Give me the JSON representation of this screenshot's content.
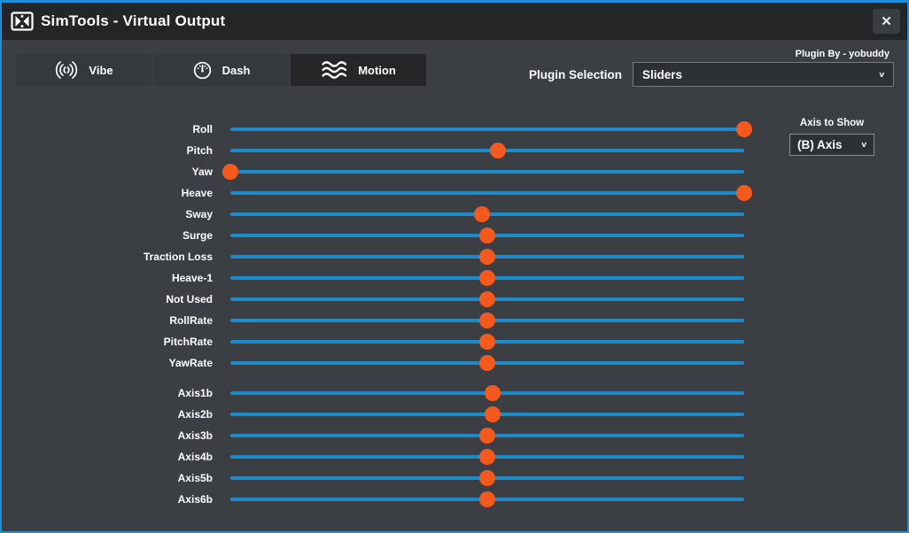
{
  "window": {
    "title": "SimTools - Virtual Output",
    "close_glyph": "✕"
  },
  "colors": {
    "accent_border": "#1e8ed8",
    "background": "#3b3e43",
    "titlebar": "#232527",
    "tab_selected": "#242628",
    "track": "#1e8bc8",
    "thumb": "#f4591d"
  },
  "icons": {
    "dropdown_chevron": "v"
  },
  "tabs": [
    {
      "label": "Vibe",
      "icon": "vibe-icon",
      "selected": false
    },
    {
      "label": "Dash",
      "icon": "dash-icon",
      "selected": false
    },
    {
      "label": "Motion",
      "icon": "motion-icon",
      "selected": true
    }
  ],
  "header": {
    "plugin_by": "Plugin By - yobuddy",
    "plugin_selection_label": "Plugin Selection",
    "plugin_selected_value": "Sliders"
  },
  "axis_panel": {
    "label": "Axis to Show",
    "selected_value": "(B) Axis"
  },
  "sliders": {
    "groups": [
      {
        "items": [
          {
            "label": "Roll",
            "percent": 100
          },
          {
            "label": "Pitch",
            "percent": 52
          },
          {
            "label": "Yaw",
            "percent": 0
          },
          {
            "label": "Heave",
            "percent": 100
          },
          {
            "label": "Sway",
            "percent": 49
          },
          {
            "label": "Surge",
            "percent": 50
          },
          {
            "label": "Traction Loss",
            "percent": 50
          },
          {
            "label": "Heave-1",
            "percent": 50
          },
          {
            "label": "Not Used",
            "percent": 50
          },
          {
            "label": "RollRate",
            "percent": 50
          },
          {
            "label": "PitchRate",
            "percent": 50
          },
          {
            "label": "YawRate",
            "percent": 50
          }
        ]
      },
      {
        "items": [
          {
            "label": "Axis1b",
            "percent": 51
          },
          {
            "label": "Axis2b",
            "percent": 51
          },
          {
            "label": "Axis3b",
            "percent": 50
          },
          {
            "label": "Axis4b",
            "percent": 50
          },
          {
            "label": "Axis5b",
            "percent": 50
          },
          {
            "label": "Axis6b",
            "percent": 50
          }
        ]
      }
    ]
  }
}
